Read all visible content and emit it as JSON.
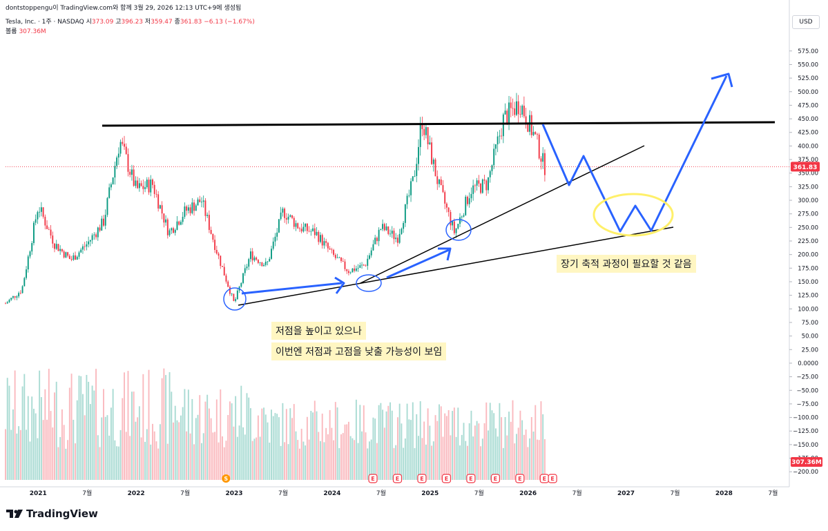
{
  "header": {
    "attribution": "dontstoppengu이 TradingView.com와 함께 3월 29, 2026 12:13 UTC+9에 생성됨",
    "symbol": "Tesla, Inc. · 1주 · NASDAQ",
    "o_label": "시",
    "o_value": "373.09",
    "h_label": "고",
    "h_value": "396.23",
    "l_label": "저",
    "l_value": "359.47",
    "c_label": "종",
    "c_value": "361.83",
    "change": "−6.13 (−1.67%)",
    "volume_label": "볼륨",
    "volume_value": "307.36M",
    "currency": "USD"
  },
  "footer": {
    "brand": "TradingView"
  },
  "annotations": {
    "note_1": "저점을 높이고 있으나",
    "note_2": "이번엔 저점과 고점을 낮출 가능성이 보임",
    "note_3": "장기 축적 과정이 필요할 것 같음"
  },
  "colors": {
    "up": "#089981",
    "down": "#f23645",
    "draw_blue": "#2962ff",
    "highlight": "#fff6c2"
  },
  "chart_data": {
    "type": "candlestick",
    "title": "Tesla, Inc. · 1주 · NASDAQ",
    "y_ticks": [
      "575.00",
      "550.00",
      "525.00",
      "500.00",
      "475.00",
      "450.00",
      "425.00",
      "400.00",
      "375.00",
      "350.00",
      "325.00",
      "300.00",
      "275.00",
      "250.00",
      "225.00",
      "200.00",
      "175.00",
      "150.00",
      "125.00",
      "100.00",
      "75.00",
      "50.00",
      "25.00",
      "0.0000",
      "−25.00",
      "−50.00",
      "−75.00",
      "−100.00",
      "−125.00",
      "−150.00",
      "−175.00",
      "−200.00"
    ],
    "ylim": [
      -215,
      590
    ],
    "x_ticks": [
      "2021",
      "7월",
      "2022",
      "7월",
      "2023",
      "7월",
      "2024",
      "7월",
      "2025",
      "7월",
      "2026",
      "7월",
      "2027",
      "7월",
      "2028",
      "7월"
    ],
    "last_price_label": "361.83",
    "last_volume_label": "307.36M",
    "price_path": [
      {
        "d": "2020-09",
        "p": 110
      },
      {
        "d": "2020-11",
        "p": 135
      },
      {
        "d": "2021-01",
        "p": 290
      },
      {
        "d": "2021-03",
        "p": 220
      },
      {
        "d": "2021-05",
        "p": 190
      },
      {
        "d": "2021-07",
        "p": 220
      },
      {
        "d": "2021-09",
        "p": 260
      },
      {
        "d": "2021-11",
        "p": 410
      },
      {
        "d": "2022-01",
        "p": 320
      },
      {
        "d": "2022-03",
        "p": 330
      },
      {
        "d": "2022-05",
        "p": 240
      },
      {
        "d": "2022-07",
        "p": 280
      },
      {
        "d": "2022-09",
        "p": 300
      },
      {
        "d": "2022-11",
        "p": 200
      },
      {
        "d": "2023-01",
        "p": 110
      },
      {
        "d": "2023-03",
        "p": 200
      },
      {
        "d": "2023-05",
        "p": 180
      },
      {
        "d": "2023-07",
        "p": 280
      },
      {
        "d": "2023-09",
        "p": 250
      },
      {
        "d": "2023-11",
        "p": 240
      },
      {
        "d": "2024-01",
        "p": 200
      },
      {
        "d": "2024-03",
        "p": 170
      },
      {
        "d": "2024-05",
        "p": 180
      },
      {
        "d": "2024-07",
        "p": 250
      },
      {
        "d": "2024-09",
        "p": 230
      },
      {
        "d": "2024-11",
        "p": 340
      },
      {
        "d": "2024-12",
        "p": 450
      },
      {
        "d": "2025-02",
        "p": 330
      },
      {
        "d": "2025-04",
        "p": 240
      },
      {
        "d": "2025-06",
        "p": 320
      },
      {
        "d": "2025-08",
        "p": 330
      },
      {
        "d": "2025-10",
        "p": 450
      },
      {
        "d": "2025-12",
        "p": 480
      },
      {
        "d": "2026-02",
        "p": 410
      },
      {
        "d": "2026-03",
        "p": 361.83
      }
    ],
    "event_markers": [
      {
        "d": "2022-12",
        "label": "S",
        "kind": "split"
      },
      {
        "d": "2024-06",
        "label": "E",
        "kind": "earnings"
      },
      {
        "d": "2024-09",
        "label": "E",
        "kind": "earnings"
      },
      {
        "d": "2024-12",
        "label": "E",
        "kind": "earnings"
      },
      {
        "d": "2025-03",
        "label": "E",
        "kind": "earnings"
      },
      {
        "d": "2025-06",
        "label": "E",
        "kind": "earnings"
      },
      {
        "d": "2025-09",
        "label": "E",
        "kind": "earnings"
      },
      {
        "d": "2025-12",
        "label": "E",
        "kind": "earnings"
      },
      {
        "d": "2026-03",
        "label": "E",
        "kind": "earnings"
      },
      {
        "d": "2026-04",
        "label": "E",
        "kind": "earnings"
      }
    ]
  }
}
